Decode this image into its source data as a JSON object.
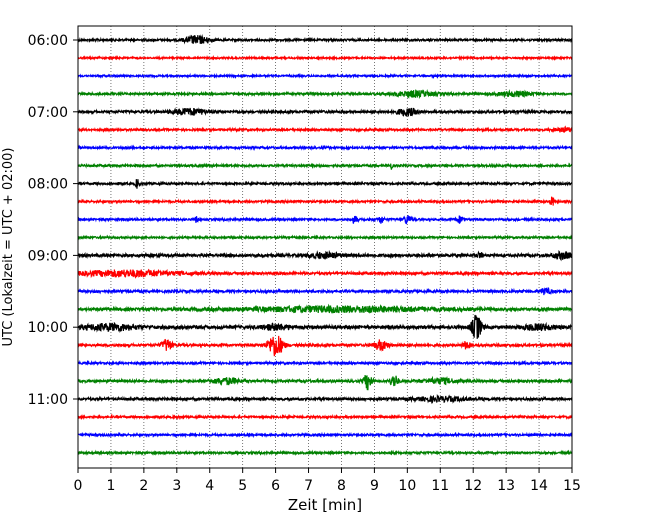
{
  "chart_data": {
    "type": "line",
    "title": "",
    "xlabel": "Zeit  [min]",
    "ylabel": "UTC (Lokalzeit = UTC + 02:00)",
    "xlim": [
      0,
      15
    ],
    "x_ticks": [
      0,
      1,
      2,
      3,
      4,
      5,
      6,
      7,
      8,
      9,
      10,
      11,
      12,
      13,
      14,
      15
    ],
    "x_grid": "dotted vertical lines at each minute",
    "y_tick_labels": [
      "06:00",
      "07:00",
      "08:00",
      "09:00",
      "10:00",
      "11:00"
    ],
    "y_tick_trace_index": [
      0,
      4,
      8,
      12,
      16,
      20
    ],
    "trace_interval_minutes": 15,
    "trace_colors": [
      "#000000",
      "#ff0000",
      "#0000ff",
      "#008000"
    ],
    "traces": [
      {
        "start": "06:00",
        "color": "#000000",
        "noise": 1.0,
        "events": [
          {
            "t": 3.6,
            "amp": 4,
            "w": 0.35
          }
        ]
      },
      {
        "start": "06:15",
        "color": "#ff0000",
        "noise": 0.8,
        "events": []
      },
      {
        "start": "06:30",
        "color": "#0000ff",
        "noise": 0.8,
        "events": []
      },
      {
        "start": "06:45",
        "color": "#008000",
        "noise": 1.0,
        "events": [
          {
            "t": 10.2,
            "amp": 3,
            "w": 0.6
          },
          {
            "t": 13.3,
            "amp": 2.5,
            "w": 0.5
          }
        ]
      },
      {
        "start": "07:00",
        "color": "#000000",
        "noise": 1.2,
        "events": [
          {
            "t": 3.4,
            "amp": 3,
            "w": 0.5
          },
          {
            "t": 10.0,
            "amp": 3.5,
            "w": 0.3
          }
        ]
      },
      {
        "start": "07:15",
        "color": "#ff0000",
        "noise": 1.0,
        "events": [
          {
            "t": 14.8,
            "amp": 2,
            "w": 0.3
          }
        ]
      },
      {
        "start": "07:30",
        "color": "#0000ff",
        "noise": 1.0,
        "events": []
      },
      {
        "start": "07:45",
        "color": "#008000",
        "noise": 1.0,
        "events": [
          {
            "t": 9.5,
            "amp": 4,
            "w": 0.05
          }
        ]
      },
      {
        "start": "08:00",
        "color": "#000000",
        "noise": 1.0,
        "events": [
          {
            "t": 1.8,
            "amp": 5,
            "w": 0.05
          }
        ]
      },
      {
        "start": "08:15",
        "color": "#ff0000",
        "noise": 1.0,
        "events": [
          {
            "t": 14.4,
            "amp": 5,
            "w": 0.05
          }
        ]
      },
      {
        "start": "08:30",
        "color": "#0000ff",
        "noise": 1.0,
        "events": [
          {
            "t": 3.6,
            "amp": 3,
            "w": 0.05
          },
          {
            "t": 8.4,
            "amp": 4,
            "w": 0.08
          },
          {
            "t": 9.2,
            "amp": 4,
            "w": 0.08
          },
          {
            "t": 10.0,
            "amp": 4.5,
            "w": 0.1
          },
          {
            "t": 11.6,
            "amp": 3.5,
            "w": 0.1
          }
        ]
      },
      {
        "start": "08:45",
        "color": "#008000",
        "noise": 0.9,
        "events": []
      },
      {
        "start": "09:00",
        "color": "#000000",
        "noise": 1.4,
        "events": [
          {
            "t": 7.5,
            "amp": 2.5,
            "w": 0.5
          },
          {
            "t": 12.2,
            "amp": 3,
            "w": 0.08
          },
          {
            "t": 14.7,
            "amp": 3,
            "w": 0.3
          }
        ]
      },
      {
        "start": "09:15",
        "color": "#ff0000",
        "noise": 1.2,
        "events": [
          {
            "t": 1.5,
            "amp": 3,
            "w": 1.5
          }
        ]
      },
      {
        "start": "09:30",
        "color": "#0000ff",
        "noise": 1.2,
        "events": [
          {
            "t": 14.2,
            "amp": 3,
            "w": 0.15
          }
        ]
      },
      {
        "start": "09:45",
        "color": "#008000",
        "noise": 1.4,
        "events": [
          {
            "t": 8.0,
            "amp": 2.5,
            "w": 3.0
          }
        ]
      },
      {
        "start": "10:00",
        "color": "#000000",
        "noise": 1.6,
        "events": [
          {
            "t": 1.0,
            "amp": 3,
            "w": 0.8
          },
          {
            "t": 6.0,
            "amp": 2.5,
            "w": 0.4
          },
          {
            "t": 12.1,
            "amp": 12,
            "w": 0.15
          },
          {
            "t": 14.0,
            "amp": 2.5,
            "w": 0.5
          }
        ]
      },
      {
        "start": "10:15",
        "color": "#ff0000",
        "noise": 1.2,
        "events": [
          {
            "t": 2.7,
            "amp": 6,
            "w": 0.15
          },
          {
            "t": 6.0,
            "amp": 11,
            "w": 0.22
          },
          {
            "t": 9.2,
            "amp": 5,
            "w": 0.2
          },
          {
            "t": 11.8,
            "amp": 4,
            "w": 0.1
          }
        ]
      },
      {
        "start": "10:30",
        "color": "#0000ff",
        "noise": 1.0,
        "events": []
      },
      {
        "start": "10:45",
        "color": "#008000",
        "noise": 1.2,
        "events": [
          {
            "t": 4.5,
            "amp": 3,
            "w": 0.4
          },
          {
            "t": 8.8,
            "amp": 8,
            "w": 0.12
          },
          {
            "t": 9.6,
            "amp": 6,
            "w": 0.12
          },
          {
            "t": 11.0,
            "amp": 2.5,
            "w": 0.5
          }
        ]
      },
      {
        "start": "11:00",
        "color": "#000000",
        "noise": 1.2,
        "events": [
          {
            "t": 11.0,
            "amp": 2,
            "w": 0.8
          }
        ]
      },
      {
        "start": "11:15",
        "color": "#ff0000",
        "noise": 1.0,
        "events": []
      },
      {
        "start": "11:30",
        "color": "#0000ff",
        "noise": 1.0,
        "events": []
      },
      {
        "start": "11:45",
        "color": "#008000",
        "noise": 1.0,
        "events": []
      }
    ]
  }
}
